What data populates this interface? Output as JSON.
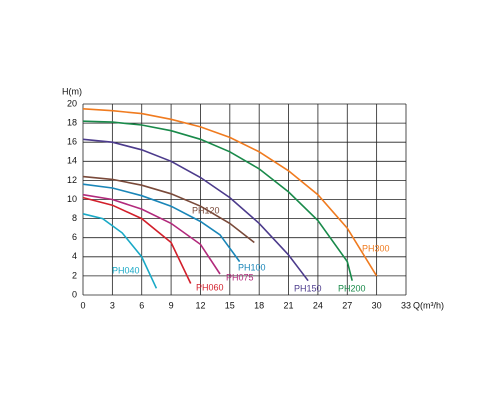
{
  "chart_data": {
    "type": "line",
    "x_label": "Q(m³/h)",
    "y_label": "H(m)",
    "xlim": [
      0,
      33
    ],
    "ylim": [
      0,
      20
    ],
    "xticks": [
      0,
      3,
      6,
      9,
      12,
      15,
      18,
      21,
      24,
      27,
      30,
      33
    ],
    "yticks": [
      0,
      2,
      4,
      6,
      8,
      10,
      12,
      14,
      16,
      18,
      20
    ],
    "grid": true,
    "series": [
      {
        "name": "PH040",
        "color": "#19a9c6",
        "x": [
          0,
          2,
          4,
          6,
          7.5
        ],
        "values": [
          8.5,
          8,
          6.5,
          4,
          0.7
        ]
      },
      {
        "name": "PH060",
        "color": "#d21f2b",
        "x": [
          0,
          3,
          6,
          9,
          11
        ],
        "values": [
          10.2,
          9.4,
          8,
          5.5,
          1.2
        ]
      },
      {
        "name": "PH075",
        "color": "#b22a7c",
        "x": [
          0,
          3,
          6,
          9,
          12,
          14
        ],
        "values": [
          10.5,
          10,
          9,
          7.5,
          5.3,
          2.2
        ]
      },
      {
        "name": "PH100",
        "color": "#1a86b8",
        "x": [
          0,
          3,
          6,
          9,
          12,
          14,
          16
        ],
        "values": [
          11.6,
          11.2,
          10.4,
          9.3,
          7.7,
          6.3,
          3.5
        ]
      },
      {
        "name": "PH120",
        "color": "#7a4a3a",
        "x": [
          0,
          3,
          6,
          9,
          12,
          15,
          17.5
        ],
        "values": [
          12.4,
          12.1,
          11.5,
          10.6,
          9.3,
          7.5,
          5.5
        ]
      },
      {
        "name": "PH150",
        "color": "#4c3b8c",
        "x": [
          0,
          3,
          6,
          9,
          12,
          15,
          18,
          21,
          23
        ],
        "values": [
          16.3,
          16,
          15.2,
          14,
          12.3,
          10.2,
          7.5,
          4.2,
          1.5
        ]
      },
      {
        "name": "PH200",
        "color": "#198a4a",
        "x": [
          0,
          3,
          6,
          9,
          12,
          15,
          18,
          21,
          24,
          27,
          27.5
        ],
        "values": [
          18.2,
          18.1,
          17.8,
          17.2,
          16.3,
          15,
          13.2,
          10.8,
          7.8,
          3.5,
          1.5
        ]
      },
      {
        "name": "PH300",
        "color": "#f07b1f",
        "x": [
          0,
          3,
          6,
          9,
          12,
          15,
          18,
          21,
          24,
          27,
          30
        ],
        "values": [
          19.5,
          19.3,
          19,
          18.4,
          17.6,
          16.5,
          15,
          13,
          10.5,
          7,
          2
        ]
      }
    ]
  }
}
